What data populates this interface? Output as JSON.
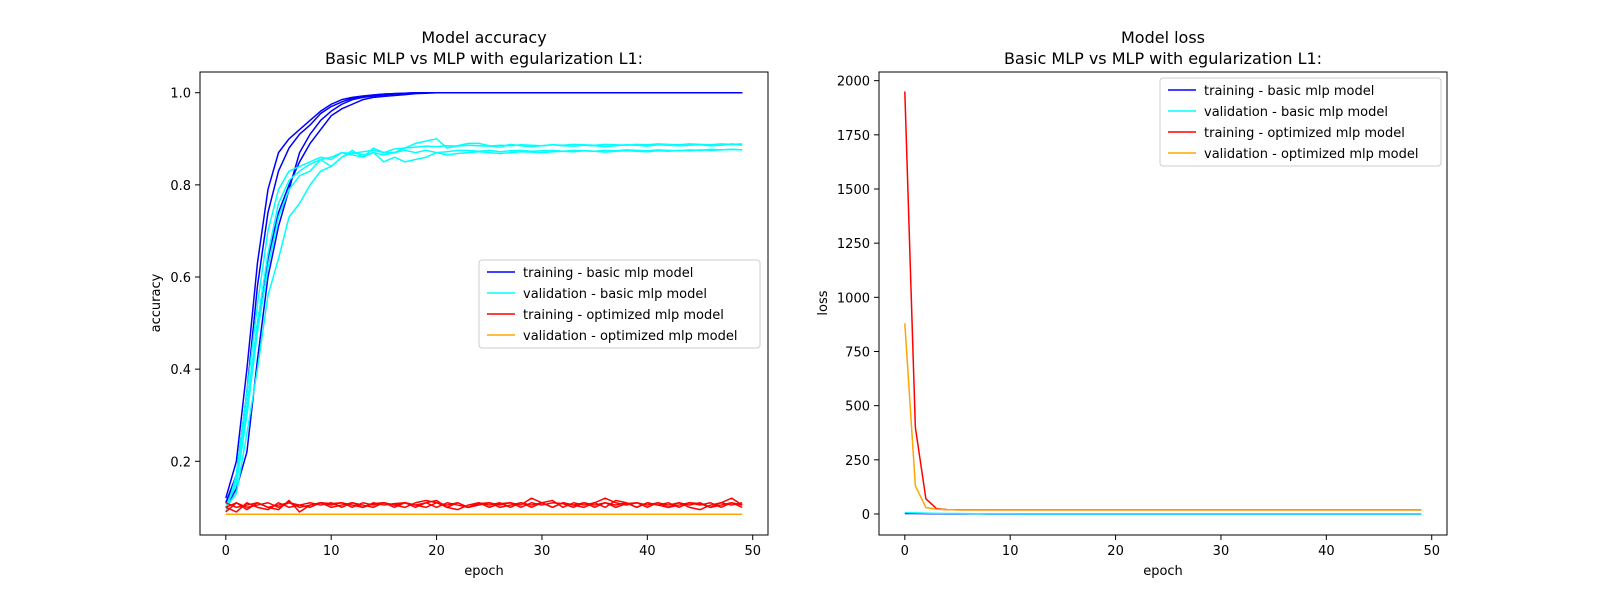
{
  "figure": {
    "background": "#ffffff"
  },
  "series_styles": [
    {
      "name": "training - basic mlp model",
      "color": "#0000ff"
    },
    {
      "name": "validation - basic mlp model",
      "color": "#00ffff"
    },
    {
      "name": "training - optimized mlp model",
      "color": "#ff0000"
    },
    {
      "name": "validation - optimized mlp model",
      "color": "#ffa500"
    }
  ],
  "chart_data": [
    {
      "type": "line",
      "title": "Model accuracy",
      "subtitle": "Basic MLP vs MLP with egularization L1:",
      "xlabel": "epoch",
      "ylabel": "accuracy",
      "xlim": [
        -2.45,
        51.45
      ],
      "ylim": [
        0.04,
        1.045
      ],
      "xticks": [
        0,
        10,
        20,
        30,
        40,
        50
      ],
      "yticks": [
        0.2,
        0.4,
        0.6,
        0.8,
        1.0
      ],
      "ytick_labels": [
        "0.2",
        "0.4",
        "0.6",
        "0.8",
        "1.0"
      ],
      "grid": false,
      "legend_position": "center-right",
      "legend": [
        "training - basic mlp model",
        "validation - basic mlp model",
        "training - optimized mlp model",
        "validation - optimized mlp model"
      ],
      "series": [
        {
          "group": 0,
          "x_start": 0,
          "x_step": 1,
          "values": [
            0.11,
            0.16,
            0.31,
            0.5,
            0.64,
            0.74,
            0.8,
            0.85,
            0.89,
            0.92,
            0.95,
            0.965,
            0.975,
            0.985,
            0.99,
            0.992,
            0.994,
            0.996,
            0.998,
            0.999,
            1.0,
            1.0,
            1.0,
            1.0,
            1.0,
            1.0,
            1.0,
            1.0,
            1.0,
            1.0,
            1.0,
            1.0,
            1.0,
            1.0,
            1.0,
            1.0,
            1.0,
            1.0,
            1.0,
            1.0,
            1.0,
            1.0,
            1.0,
            1.0,
            1.0,
            1.0,
            1.0,
            1.0,
            1.0,
            1.0
          ]
        },
        {
          "group": 0,
          "x_start": 0,
          "x_step": 1,
          "values": [
            0.12,
            0.2,
            0.4,
            0.63,
            0.79,
            0.87,
            0.9,
            0.92,
            0.94,
            0.96,
            0.975,
            0.985,
            0.99,
            0.993,
            0.995,
            0.997,
            0.998,
            0.999,
            1.0,
            1.0,
            1.0,
            1.0,
            1.0,
            1.0,
            1.0,
            1.0,
            1.0,
            1.0,
            1.0,
            1.0,
            1.0,
            1.0,
            1.0,
            1.0,
            1.0,
            1.0,
            1.0,
            1.0,
            1.0,
            1.0,
            1.0,
            1.0,
            1.0,
            1.0,
            1.0,
            1.0,
            1.0,
            1.0,
            1.0,
            1.0
          ]
        },
        {
          "group": 0,
          "x_start": 0,
          "x_step": 1,
          "values": [
            0.1,
            0.14,
            0.22,
            0.42,
            0.6,
            0.71,
            0.79,
            0.87,
            0.91,
            0.94,
            0.96,
            0.975,
            0.985,
            0.99,
            0.993,
            0.995,
            0.997,
            0.998,
            0.999,
            1.0,
            1.0,
            1.0,
            1.0,
            1.0,
            1.0,
            1.0,
            1.0,
            1.0,
            1.0,
            1.0,
            1.0,
            1.0,
            1.0,
            1.0,
            1.0,
            1.0,
            1.0,
            1.0,
            1.0,
            1.0,
            1.0,
            1.0,
            1.0,
            1.0,
            1.0,
            1.0,
            1.0,
            1.0,
            1.0,
            1.0
          ]
        },
        {
          "group": 0,
          "x_start": 0,
          "x_step": 1,
          "values": [
            0.11,
            0.17,
            0.35,
            0.58,
            0.74,
            0.83,
            0.88,
            0.91,
            0.93,
            0.955,
            0.97,
            0.98,
            0.988,
            0.992,
            0.995,
            0.997,
            0.998,
            0.999,
            1.0,
            1.0,
            1.0,
            1.0,
            1.0,
            1.0,
            1.0,
            1.0,
            1.0,
            1.0,
            1.0,
            1.0,
            1.0,
            1.0,
            1.0,
            1.0,
            1.0,
            1.0,
            1.0,
            1.0,
            1.0,
            1.0,
            1.0,
            1.0,
            1.0,
            1.0,
            1.0,
            1.0,
            1.0,
            1.0,
            1.0,
            1.0
          ]
        },
        {
          "group": 1,
          "x_start": 0,
          "x_step": 1,
          "values": [
            0.1,
            0.13,
            0.26,
            0.4,
            0.56,
            0.64,
            0.73,
            0.76,
            0.8,
            0.83,
            0.84,
            0.86,
            0.87,
            0.865,
            0.87,
            0.865,
            0.87,
            0.875,
            0.87,
            0.875,
            0.87,
            0.872,
            0.875,
            0.875,
            0.873,
            0.875,
            0.872,
            0.874,
            0.875,
            0.873,
            0.874,
            0.875,
            0.873,
            0.875,
            0.874,
            0.873,
            0.875,
            0.874,
            0.876,
            0.875,
            0.874,
            0.876,
            0.875,
            0.874,
            0.876,
            0.875,
            0.877,
            0.876,
            0.877,
            0.876
          ]
        },
        {
          "group": 1,
          "x_start": 0,
          "x_step": 1,
          "values": [
            0.09,
            0.17,
            0.35,
            0.54,
            0.7,
            0.79,
            0.83,
            0.84,
            0.85,
            0.86,
            0.855,
            0.87,
            0.865,
            0.86,
            0.88,
            0.87,
            0.87,
            0.88,
            0.89,
            0.895,
            0.9,
            0.88,
            0.885,
            0.89,
            0.89,
            0.885,
            0.882,
            0.888,
            0.885,
            0.883,
            0.885,
            0.887,
            0.885,
            0.884,
            0.886,
            0.885,
            0.883,
            0.885,
            0.887,
            0.886,
            0.884,
            0.887,
            0.886,
            0.885,
            0.886,
            0.887,
            0.885,
            0.886,
            0.889,
            0.886
          ]
        },
        {
          "group": 1,
          "x_start": 0,
          "x_step": 1,
          "values": [
            0.1,
            0.15,
            0.3,
            0.48,
            0.62,
            0.73,
            0.79,
            0.82,
            0.83,
            0.855,
            0.84,
            0.86,
            0.875,
            0.86,
            0.87,
            0.85,
            0.86,
            0.85,
            0.855,
            0.86,
            0.87,
            0.865,
            0.868,
            0.87,
            0.872,
            0.87,
            0.868,
            0.87,
            0.872,
            0.871,
            0.87,
            0.872,
            0.873,
            0.872,
            0.874,
            0.873,
            0.871,
            0.873,
            0.874,
            0.873,
            0.872,
            0.874,
            0.873,
            0.875,
            0.874,
            0.876,
            0.875,
            0.876,
            0.877,
            0.876
          ]
        },
        {
          "group": 1,
          "x_start": 0,
          "x_step": 1,
          "values": [
            0.1,
            0.16,
            0.32,
            0.5,
            0.65,
            0.76,
            0.81,
            0.83,
            0.845,
            0.855,
            0.86,
            0.87,
            0.868,
            0.872,
            0.875,
            0.87,
            0.878,
            0.88,
            0.882,
            0.884,
            0.883,
            0.885,
            0.884,
            0.886,
            0.885,
            0.884,
            0.886,
            0.885,
            0.887,
            0.886,
            0.885,
            0.887,
            0.886,
            0.888,
            0.887,
            0.886,
            0.888,
            0.887,
            0.886,
            0.888,
            0.887,
            0.889,
            0.888,
            0.887,
            0.889,
            0.888,
            0.887,
            0.889,
            0.888,
            0.889
          ]
        },
        {
          "group": 2,
          "x_start": 0,
          "x_step": 1,
          "values": [
            0.1,
            0.11,
            0.1,
            0.105,
            0.11,
            0.1,
            0.11,
            0.105,
            0.1,
            0.11,
            0.105,
            0.11,
            0.1,
            0.11,
            0.105,
            0.11,
            0.1,
            0.11,
            0.105,
            0.11,
            0.1,
            0.11,
            0.105,
            0.1,
            0.11,
            0.105,
            0.11,
            0.1,
            0.11,
            0.105,
            0.11,
            0.1,
            0.11,
            0.105,
            0.11,
            0.1,
            0.11,
            0.105,
            0.11,
            0.1,
            0.11,
            0.105,
            0.11,
            0.1,
            0.11,
            0.105,
            0.11,
            0.1,
            0.11,
            0.105
          ]
        },
        {
          "group": 2,
          "x_start": 0,
          "x_step": 1,
          "values": [
            0.09,
            0.11,
            0.095,
            0.11,
            0.1,
            0.095,
            0.115,
            0.09,
            0.105,
            0.11,
            0.1,
            0.105,
            0.11,
            0.1,
            0.108,
            0.11,
            0.105,
            0.1,
            0.11,
            0.115,
            0.11,
            0.1,
            0.095,
            0.105,
            0.11,
            0.1,
            0.108,
            0.11,
            0.105,
            0.12,
            0.11,
            0.1,
            0.11,
            0.105,
            0.1,
            0.11,
            0.12,
            0.11,
            0.105,
            0.11,
            0.1,
            0.11,
            0.105,
            0.11,
            0.1,
            0.095,
            0.105,
            0.11,
            0.12,
            0.105
          ]
        },
        {
          "group": 2,
          "x_start": 0,
          "x_step": 1,
          "values": [
            0.1,
            0.09,
            0.11,
            0.1,
            0.095,
            0.11,
            0.1,
            0.105,
            0.11,
            0.105,
            0.11,
            0.1,
            0.11,
            0.105,
            0.1,
            0.11,
            0.105,
            0.11,
            0.1,
            0.11,
            0.115,
            0.1,
            0.11,
            0.1,
            0.105,
            0.11,
            0.1,
            0.105,
            0.11,
            0.1,
            0.11,
            0.115,
            0.1,
            0.11,
            0.105,
            0.11,
            0.1,
            0.115,
            0.11,
            0.1,
            0.11,
            0.105,
            0.1,
            0.11,
            0.105,
            0.11,
            0.1,
            0.105,
            0.11,
            0.1
          ]
        },
        {
          "group": 2,
          "x_start": 0,
          "x_step": 1,
          "values": [
            0.11,
            0.1,
            0.105,
            0.11,
            0.1,
            0.105,
            0.11,
            0.1,
            0.105,
            0.11,
            0.108,
            0.11,
            0.105,
            0.1,
            0.11,
            0.105,
            0.108,
            0.11,
            0.105,
            0.1,
            0.11,
            0.105,
            0.11,
            0.1,
            0.108,
            0.11,
            0.105,
            0.11,
            0.1,
            0.11,
            0.105,
            0.11,
            0.108,
            0.1,
            0.11,
            0.105,
            0.11,
            0.1,
            0.108,
            0.11,
            0.105,
            0.11,
            0.1,
            0.105,
            0.11,
            0.108,
            0.1,
            0.11,
            0.105,
            0.11
          ]
        },
        {
          "group": 3,
          "x_start": 0,
          "x_step": 1,
          "values": [
            0.085,
            0.085,
            0.085,
            0.085,
            0.085,
            0.085,
            0.085,
            0.085,
            0.085,
            0.085,
            0.085,
            0.085,
            0.085,
            0.085,
            0.085,
            0.085,
            0.085,
            0.085,
            0.085,
            0.085,
            0.085,
            0.085,
            0.085,
            0.085,
            0.085,
            0.085,
            0.085,
            0.085,
            0.085,
            0.085,
            0.085,
            0.085,
            0.085,
            0.085,
            0.085,
            0.085,
            0.085,
            0.085,
            0.085,
            0.085,
            0.085,
            0.085,
            0.085,
            0.085,
            0.085,
            0.085,
            0.085,
            0.085,
            0.085,
            0.085
          ]
        }
      ]
    },
    {
      "type": "line",
      "title": "Model loss",
      "subtitle": "Basic MLP vs MLP with egularization L1:",
      "xlabel": "epoch",
      "ylabel": "loss",
      "xlim": [
        -2.45,
        51.45
      ],
      "ylim": [
        -97,
        2040
      ],
      "xticks": [
        0,
        10,
        20,
        30,
        40,
        50
      ],
      "yticks": [
        0,
        250,
        500,
        750,
        1000,
        1250,
        1500,
        1750,
        2000
      ],
      "ytick_labels": [
        "0",
        "250",
        "500",
        "750",
        "1000",
        "1250",
        "1500",
        "1750",
        "2000"
      ],
      "grid": false,
      "legend_position": "top-right",
      "legend": [
        "training - basic mlp model",
        "validation - basic mlp model",
        "training - optimized mlp model",
        "validation - optimized mlp model"
      ],
      "series": [
        {
          "group": 0,
          "x_start": 0,
          "x_step": 1,
          "values": [
            2.3,
            2.0,
            1.5,
            1.0,
            0.7,
            0.5,
            0.35,
            0.25,
            0.18,
            0.12,
            0.08,
            0.05,
            0.03,
            0.02,
            0.015,
            0.01,
            0.01,
            0.01,
            0.01,
            0.01,
            0.01,
            0.01,
            0.01,
            0.01,
            0.01,
            0.01,
            0.01,
            0.01,
            0.01,
            0.01,
            0.01,
            0.01,
            0.01,
            0.01,
            0.01,
            0.01,
            0.01,
            0.01,
            0.01,
            0.01,
            0.01,
            0.01,
            0.01,
            0.01,
            0.01,
            0.01,
            0.01,
            0.01,
            0.01,
            0.01
          ]
        },
        {
          "group": 1,
          "x_start": 0,
          "x_step": 1,
          "values": [
            6.0,
            5.0,
            4.0,
            3.0,
            2.5,
            2.0,
            1.5,
            1.2,
            1.0,
            0.9,
            0.8,
            0.7,
            0.65,
            0.6,
            0.6,
            0.6,
            0.6,
            0.6,
            0.6,
            0.6,
            0.6,
            0.6,
            0.6,
            0.6,
            0.6,
            0.6,
            0.6,
            0.6,
            0.6,
            0.6,
            0.6,
            0.6,
            0.6,
            0.6,
            0.6,
            0.6,
            0.6,
            0.6,
            0.6,
            0.6,
            0.6,
            0.6,
            0.6,
            0.6,
            0.6,
            0.6,
            0.6,
            0.6,
            0.6,
            0.6
          ]
        },
        {
          "group": 2,
          "x_start": 0,
          "x_step": 1,
          "values": [
            1950,
            400,
            70,
            25,
            20,
            19,
            19,
            19,
            19,
            19,
            19,
            19,
            19,
            19,
            19,
            19,
            19,
            19,
            19,
            19,
            19,
            19,
            19,
            19,
            19,
            19,
            19,
            19,
            19,
            19,
            19,
            19,
            19,
            19,
            19,
            19,
            19,
            19,
            19,
            19,
            19,
            19,
            19,
            19,
            19,
            19,
            19,
            19,
            19,
            19
          ]
        },
        {
          "group": 3,
          "x_start": 0,
          "x_step": 1,
          "values": [
            880,
            130,
            30,
            22,
            20,
            19,
            19,
            19,
            19,
            19,
            19,
            19,
            19,
            19,
            19,
            19,
            19,
            19,
            19,
            19,
            19,
            19,
            19,
            19,
            19,
            19,
            19,
            19,
            19,
            19,
            19,
            19,
            19,
            19,
            19,
            19,
            19,
            19,
            19,
            19,
            19,
            19,
            19,
            19,
            19,
            19,
            19,
            19,
            19,
            19
          ]
        }
      ]
    }
  ]
}
